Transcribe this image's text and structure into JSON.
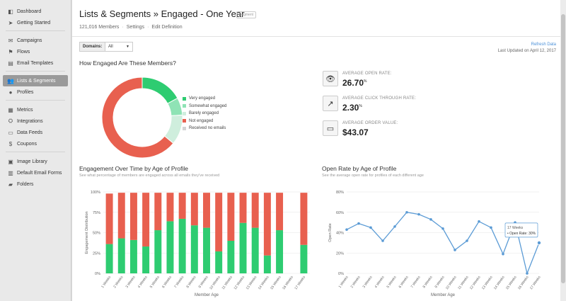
{
  "sidebar": {
    "groups": [
      [
        {
          "label": "Dashboard",
          "icon": "dashboard-icon",
          "glyph": "◧"
        },
        {
          "label": "Getting Started",
          "icon": "send-icon",
          "glyph": "➤"
        }
      ],
      [
        {
          "label": "Campaigns",
          "icon": "campaigns-icon",
          "glyph": "✉"
        },
        {
          "label": "Flows",
          "icon": "flows-icon",
          "glyph": "⚑"
        },
        {
          "label": "Email Templates",
          "icon": "template-icon",
          "glyph": "▤"
        }
      ],
      [
        {
          "label": "Lists & Segments",
          "icon": "users-icon",
          "glyph": "👥",
          "active": true
        },
        {
          "label": "Profiles",
          "icon": "profile-icon",
          "glyph": "●"
        }
      ],
      [
        {
          "label": "Metrics",
          "icon": "metrics-icon",
          "glyph": "▦"
        },
        {
          "label": "Integrations",
          "icon": "integrations-icon",
          "glyph": "⛭"
        },
        {
          "label": "Data Feeds",
          "icon": "feeds-icon",
          "glyph": "▭"
        },
        {
          "label": "Coupons",
          "icon": "dollar-icon",
          "glyph": "$"
        }
      ],
      [
        {
          "label": "Image Library",
          "icon": "image-icon",
          "glyph": "▣"
        },
        {
          "label": "Default Email Forms",
          "icon": "forms-icon",
          "glyph": "▥"
        },
        {
          "label": "Folders",
          "icon": "folder-icon",
          "glyph": "▰"
        }
      ]
    ]
  },
  "header": {
    "title": "Lists & Segments » Engaged - One Year",
    "badge": "Segment",
    "members": "121,016 Members",
    "settings": "Settings",
    "edit": "Edit Definition",
    "sep": "·"
  },
  "toolbar": {
    "domains_label": "Domains:",
    "domains_value": "All",
    "refresh": "Refresh Data",
    "updated": "Last Updated on April 12, 2017"
  },
  "engagement": {
    "title": "How Engaged Are These Members?",
    "legend": [
      {
        "label": "Very engaged",
        "color": "#2ecc71",
        "value": 17
      },
      {
        "label": "Somewhat engaged",
        "color": "#8fe3b5",
        "value": 7
      },
      {
        "label": "Barely engaged",
        "color": "#cfeedd",
        "value": 12
      },
      {
        "label": "Not engaged",
        "color": "#e8604f",
        "value": 64
      },
      {
        "label": "Received no emails",
        "color": "#d4d4d4",
        "value": 0
      }
    ]
  },
  "stats": [
    {
      "label": "AVERAGE OPEN RATE:",
      "value": "26.70",
      "unit": "%",
      "icon": "eye-icon",
      "glyph": "👁"
    },
    {
      "label": "AVERAGE CLICK THROUGH RATE:",
      "value": "2.30",
      "unit": "%",
      "icon": "external-link-icon",
      "glyph": "↗"
    },
    {
      "label": "AVERAGE ORDER VALUE:",
      "value": "$43.07",
      "unit": "",
      "icon": "money-icon",
      "glyph": "▭"
    }
  ],
  "over_time": {
    "title": "Engagement Over Time by Age of Profile",
    "subtitle": "See what percentage of members are engaged across all emails they've received"
  },
  "open_rate": {
    "title": "Open Rate by Age of Profile",
    "subtitle": "See the average open rate for profiles of each different age",
    "tooltip_title": "17 Weeks",
    "tooltip_body": "• Open Rate: 30%"
  },
  "chart_data": [
    {
      "type": "bar",
      "stacked": true,
      "title": "Engagement Over Time by Age of Profile",
      "xlabel": "Member Age",
      "ylabel": "Engagement Distribution",
      "ylim": [
        0,
        100
      ],
      "yticks": [
        "0%",
        "25%",
        "50%",
        "75%",
        "100%"
      ],
      "categories": [
        "1 Weeks",
        "2 Weeks",
        "3 Weeks",
        "4 Weeks",
        "5 Weeks",
        "6 Weeks",
        "7 Weeks",
        "8 Weeks",
        "9 Weeks",
        "10 Weeks",
        "11 Weeks",
        "12 Weeks",
        "13 Weeks",
        "14 Weeks",
        "15 Weeks",
        "16 Weeks",
        "17 Weeks"
      ],
      "series": [
        {
          "color": "#2ecc71",
          "values": [
            36,
            43,
            41,
            33,
            53,
            64,
            67,
            59,
            56,
            27,
            40,
            62,
            56,
            22,
            53,
            0,
            35
          ]
        },
        {
          "color": "#e8604f",
          "values": [
            62,
            56,
            58,
            66,
            46,
            35,
            32,
            40,
            43,
            72,
            59,
            37,
            43,
            77,
            46,
            0,
            64
          ]
        }
      ]
    },
    {
      "type": "line",
      "title": "Open Rate by Age of Profile",
      "xlabel": "Member Age",
      "ylabel": "Open Rate",
      "ylim": [
        0,
        80
      ],
      "yticks": [
        "0%",
        "20%",
        "40%",
        "60%",
        "80%"
      ],
      "categories": [
        "1 Weeks",
        "2 Weeks",
        "3 Weeks",
        "4 Weeks",
        "5 Weeks",
        "6 Weeks",
        "7 Weeks",
        "8 Weeks",
        "9 Weeks",
        "10 Weeks",
        "11 Weeks",
        "12 Weeks",
        "13 Weeks",
        "14 Weeks",
        "15 Weeks",
        "16 Weeks",
        "17 Weeks"
      ],
      "series": [
        {
          "color": "#5b9bd5",
          "values": [
            43,
            49,
            45,
            32,
            46,
            60,
            58,
            53,
            44,
            23,
            32,
            51,
            45,
            19,
            50,
            0,
            30
          ]
        }
      ]
    }
  ]
}
